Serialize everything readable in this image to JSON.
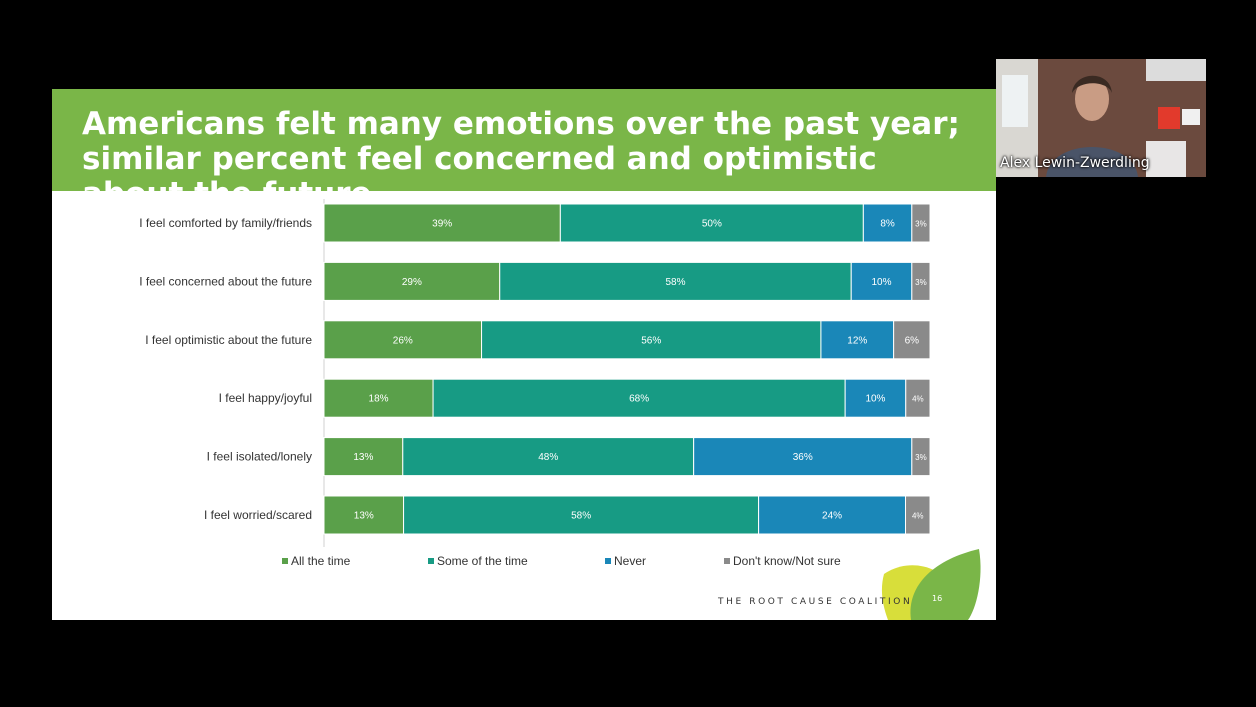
{
  "slide": {
    "title": "Americans felt many emotions over the past year; similar percent feel concerned and optimistic about the future",
    "footer_brand": "THE ROOT CAUSE COALITION",
    "page_number": "16"
  },
  "video": {
    "participant_name": "Alex Lewin-Zwerdling"
  },
  "colors": {
    "title_band": "#7ab648",
    "all_the_time": "#5aa04a",
    "some_of_the_time": "#179b84",
    "never": "#1a87b8",
    "dont_know": "#8a8a8a"
  },
  "chart_data": {
    "type": "bar",
    "orientation": "horizontal",
    "stacked": true,
    "categories": [
      "I feel comforted by family/friends",
      "I feel concerned about the future",
      "I feel optimistic about the future",
      "I feel happy/joyful",
      "I feel isolated/lonely",
      "I feel worried/scared"
    ],
    "series": [
      {
        "name": "All the time",
        "values": [
          39,
          29,
          26,
          18,
          13,
          13
        ],
        "color": "#5aa04a"
      },
      {
        "name": "Some of the time",
        "values": [
          50,
          58,
          56,
          68,
          48,
          58
        ],
        "color": "#179b84"
      },
      {
        "name": "Never",
        "values": [
          8,
          10,
          12,
          10,
          36,
          24
        ],
        "color": "#1a87b8"
      },
      {
        "name": "Don't know/Not sure",
        "values": [
          3,
          3,
          6,
          4,
          3,
          4
        ],
        "color": "#8a8a8a"
      }
    ],
    "value_format": "percent",
    "legend_position": "bottom",
    "grid": false
  }
}
